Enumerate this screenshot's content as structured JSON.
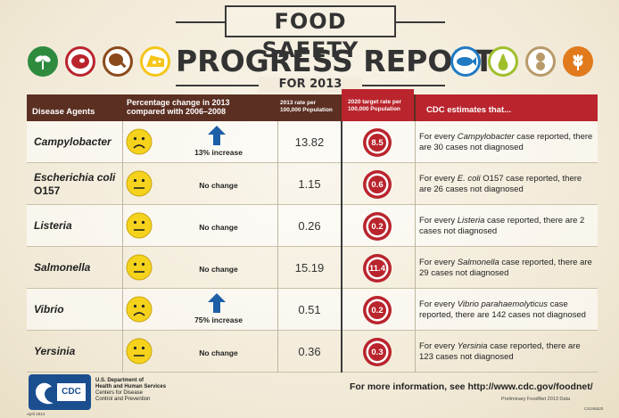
{
  "header": {
    "line1": "FOOD SAFETY",
    "line2": "PROGRESS REPORT",
    "line3": "FOR 2013",
    "left_icons": [
      "sprout-icon",
      "meat-icon",
      "drumstick-icon",
      "cheese-icon"
    ],
    "right_icons": [
      "fish-icon",
      "pear-icon",
      "peanut-icon",
      "wheat-icon"
    ],
    "colors": {
      "header_brown": "#5b2f22",
      "header_red": "#b9242d",
      "face_yellow": "#f5d21c",
      "arrow_blue": "#1f5fa8",
      "target_red": "#b9242d"
    }
  },
  "table": {
    "headers": {
      "agents": "Disease Agents",
      "pct_line1": "Percentage change in 2013",
      "pct_line2": "compared with 2006–2008",
      "rate_line1": "2013 rate per",
      "rate_line2": "100,000 Population",
      "target_line1": "2020 target rate per",
      "target_line2": "100,000 Population",
      "cdc": "CDC estimates that..."
    },
    "rows": [
      {
        "agent": "Campylobacter",
        "agent_sub": "",
        "face": "sad",
        "arrow": true,
        "change": "13% increase",
        "rate": "13.82",
        "target": "8.5",
        "est_pre": "For every ",
        "est_name": "Campylobacter",
        "est_post": " case reported, there are 30 cases not diagnosed"
      },
      {
        "agent": "Escherichia coli",
        "agent_sub": "O157",
        "face": "neutral",
        "arrow": false,
        "change": "No change",
        "rate": "1.15",
        "target": "0.6",
        "est_pre": "For every ",
        "est_name": "E. coli",
        "est_post": " O157 case reported, there are 26 cases not diagnosed"
      },
      {
        "agent": "Listeria",
        "agent_sub": "",
        "face": "neutral",
        "arrow": false,
        "change": "No change",
        "rate": "0.26",
        "target": "0.2",
        "est_pre": "For every ",
        "est_name": "Listeria",
        "est_post": " case reported, there are 2 cases not diagnosed"
      },
      {
        "agent": "Salmonella",
        "agent_sub": "",
        "face": "neutral",
        "arrow": false,
        "change": "No change",
        "rate": "15.19",
        "target": "11.4",
        "est_pre": "For every ",
        "est_name": "Salmonella",
        "est_post": " case reported, there are 29 cases not diagnosed"
      },
      {
        "agent": "Vibrio",
        "agent_sub": "",
        "face": "sad",
        "arrow": true,
        "change": "75% increase",
        "rate": "0.51",
        "target": "0.2",
        "est_pre": "For every ",
        "est_name": "Vibrio parahaemolyticus",
        "est_post": " case reported, there are 142 cases not diagnosed"
      },
      {
        "agent": "Yersinia",
        "agent_sub": "",
        "face": "neutral",
        "arrow": false,
        "change": "No change",
        "rate": "0.36",
        "target": "0.3",
        "est_pre": "For every ",
        "est_name": "Yersinia",
        "est_post": " case reported, there are 123 cases not diagnosed"
      }
    ]
  },
  "footer": {
    "hhs_line1": "U.S. Department of",
    "hhs_line2": "Health and Human Services",
    "hhs_line3": "Centers for Disease",
    "hhs_line4": "Control and Prevention",
    "logo_text": "CDC",
    "more_info": "For more information, see http://www.cdc.gov/foodnet/",
    "prelim": "Preliminary FoodNet 2013 Data",
    "code": "CS246520",
    "date": "April 2014"
  }
}
